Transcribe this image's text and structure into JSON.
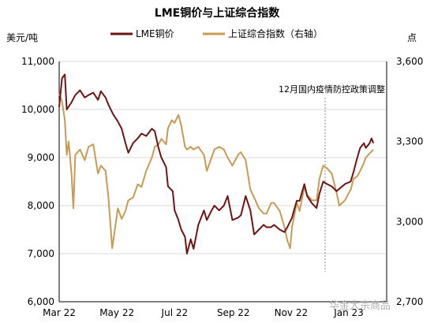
{
  "chart_data": {
    "type": "line",
    "title": "LME铜价与上证综合指数",
    "left_unit": "美元/吨",
    "right_unit": "点",
    "ylim_left": [
      6000,
      11000
    ],
    "ylim_right": [
      2700,
      3600
    ],
    "left_ticks": [
      "6,000",
      "7,000",
      "8,000",
      "9,000",
      "10,000",
      "11,000"
    ],
    "right_ticks": [
      "2,700",
      "3,000",
      "3,300",
      "3,600"
    ],
    "x_ticks": [
      "Mar 22",
      "May 22",
      "Jul 22",
      "Sep 22",
      "Nov 22",
      "Jan 23"
    ],
    "annotation": "12月国内疫情防控政策调整",
    "annotation_x": "2022-12-07",
    "legend_position": "top",
    "colors": {
      "lme": "#6e1414",
      "sse": "#c89a52",
      "grid": "#d9d9d9",
      "annotation_line": "#888888"
    },
    "series": [
      {
        "name": "LME铜价",
        "axis": "left",
        "points": [
          [
            "2022-03-01",
            10050
          ],
          [
            "2022-03-04",
            10650
          ],
          [
            "2022-03-07",
            10730
          ],
          [
            "2022-03-09",
            10000
          ],
          [
            "2022-03-14",
            10150
          ],
          [
            "2022-03-18",
            10300
          ],
          [
            "2022-03-23",
            10400
          ],
          [
            "2022-03-28",
            10250
          ],
          [
            "2022-04-01",
            10300
          ],
          [
            "2022-04-06",
            10350
          ],
          [
            "2022-04-11",
            10200
          ],
          [
            "2022-04-14",
            10380
          ],
          [
            "2022-04-19",
            10250
          ],
          [
            "2022-04-22",
            10100
          ],
          [
            "2022-04-27",
            9900
          ],
          [
            "2022-05-02",
            9750
          ],
          [
            "2022-05-06",
            9600
          ],
          [
            "2022-05-10",
            9300
          ],
          [
            "2022-05-13",
            9100
          ],
          [
            "2022-05-18",
            9300
          ],
          [
            "2022-05-23",
            9400
          ],
          [
            "2022-05-27",
            9500
          ],
          [
            "2022-06-01",
            9450
          ],
          [
            "2022-06-07",
            9600
          ],
          [
            "2022-06-10",
            9550
          ],
          [
            "2022-06-14",
            9200
          ],
          [
            "2022-06-17",
            9000
          ],
          [
            "2022-06-22",
            8800
          ],
          [
            "2022-06-24",
            8400
          ],
          [
            "2022-06-29",
            8300
          ],
          [
            "2022-07-01",
            7900
          ],
          [
            "2022-07-05",
            7700
          ],
          [
            "2022-07-08",
            7500
          ],
          [
            "2022-07-12",
            7350
          ],
          [
            "2022-07-14",
            7000
          ],
          [
            "2022-07-18",
            7300
          ],
          [
            "2022-07-21",
            7100
          ],
          [
            "2022-07-26",
            7600
          ],
          [
            "2022-08-01",
            7900
          ],
          [
            "2022-08-04",
            7700
          ],
          [
            "2022-08-09",
            7900
          ],
          [
            "2022-08-12",
            8000
          ],
          [
            "2022-08-17",
            7900
          ],
          [
            "2022-08-22",
            8000
          ],
          [
            "2022-08-26",
            8200
          ],
          [
            "2022-08-31",
            7700
          ],
          [
            "2022-09-06",
            7750
          ],
          [
            "2022-09-09",
            7800
          ],
          [
            "2022-09-14",
            8200
          ],
          [
            "2022-09-19",
            7900
          ],
          [
            "2022-09-23",
            7400
          ],
          [
            "2022-09-28",
            7500
          ],
          [
            "2022-10-03",
            7600
          ],
          [
            "2022-10-06",
            7550
          ],
          [
            "2022-10-11",
            7550
          ],
          [
            "2022-10-14",
            7600
          ],
          [
            "2022-10-20",
            7500
          ],
          [
            "2022-10-25",
            7450
          ],
          [
            "2022-10-28",
            7550
          ],
          [
            "2022-11-02",
            7750
          ],
          [
            "2022-11-04",
            7900
          ],
          [
            "2022-11-07",
            8100
          ],
          [
            "2022-11-10",
            8100
          ],
          [
            "2022-11-15",
            8450
          ],
          [
            "2022-11-18",
            8200
          ],
          [
            "2022-11-23",
            8050
          ],
          [
            "2022-11-28",
            7950
          ],
          [
            "2022-12-01",
            8250
          ],
          [
            "2022-12-05",
            8500
          ],
          [
            "2022-12-09",
            8450
          ],
          [
            "2022-12-14",
            8400
          ],
          [
            "2022-12-19",
            8300
          ],
          [
            "2022-12-22",
            8350
          ],
          [
            "2022-12-28",
            8450
          ],
          [
            "2023-01-03",
            8500
          ],
          [
            "2023-01-06",
            8700
          ],
          [
            "2023-01-10",
            9000
          ],
          [
            "2023-01-13",
            9200
          ],
          [
            "2023-01-17",
            9300
          ],
          [
            "2023-01-19",
            9200
          ],
          [
            "2023-01-23",
            9300
          ],
          [
            "2023-01-25",
            9400
          ],
          [
            "2023-01-27",
            9300
          ]
        ]
      },
      {
        "name": "上证综合指数（右轴）",
        "axis": "right",
        "points": [
          [
            "2022-03-01",
            3480
          ],
          [
            "2022-03-04",
            3450
          ],
          [
            "2022-03-07",
            3380
          ],
          [
            "2022-03-09",
            3250
          ],
          [
            "2022-03-11",
            3300
          ],
          [
            "2022-03-14",
            3180
          ],
          [
            "2022-03-16",
            3050
          ],
          [
            "2022-03-18",
            3250
          ],
          [
            "2022-03-23",
            3270
          ],
          [
            "2022-03-28",
            3230
          ],
          [
            "2022-04-01",
            3280
          ],
          [
            "2022-04-06",
            3290
          ],
          [
            "2022-04-11",
            3180
          ],
          [
            "2022-04-14",
            3210
          ],
          [
            "2022-04-19",
            3190
          ],
          [
            "2022-04-22",
            3090
          ],
          [
            "2022-04-26",
            2900
          ],
          [
            "2022-04-28",
            2950
          ],
          [
            "2022-05-02",
            3050
          ],
          [
            "2022-05-06",
            3010
          ],
          [
            "2022-05-10",
            3040
          ],
          [
            "2022-05-13",
            3080
          ],
          [
            "2022-05-18",
            3090
          ],
          [
            "2022-05-23",
            3140
          ],
          [
            "2022-05-27",
            3130
          ],
          [
            "2022-06-01",
            3190
          ],
          [
            "2022-06-07",
            3240
          ],
          [
            "2022-06-10",
            3280
          ],
          [
            "2022-06-14",
            3290
          ],
          [
            "2022-06-17",
            3310
          ],
          [
            "2022-06-22",
            3290
          ],
          [
            "2022-06-24",
            3350
          ],
          [
            "2022-06-28",
            3380
          ],
          [
            "2022-07-01",
            3370
          ],
          [
            "2022-07-05",
            3400
          ],
          [
            "2022-07-08",
            3360
          ],
          [
            "2022-07-12",
            3280
          ],
          [
            "2022-07-14",
            3270
          ],
          [
            "2022-07-18",
            3280
          ],
          [
            "2022-07-21",
            3270
          ],
          [
            "2022-07-26",
            3280
          ],
          [
            "2022-08-01",
            3250
          ],
          [
            "2022-08-04",
            3190
          ],
          [
            "2022-08-09",
            3240
          ],
          [
            "2022-08-12",
            3270
          ],
          [
            "2022-08-17",
            3280
          ],
          [
            "2022-08-22",
            3270
          ],
          [
            "2022-08-26",
            3240
          ],
          [
            "2022-08-31",
            3210
          ],
          [
            "2022-09-06",
            3250
          ],
          [
            "2022-09-09",
            3260
          ],
          [
            "2022-09-14",
            3230
          ],
          [
            "2022-09-19",
            3120
          ],
          [
            "2022-09-23",
            3090
          ],
          [
            "2022-09-28",
            3050
          ],
          [
            "2022-10-03",
            3030
          ],
          [
            "2022-10-06",
            3030
          ],
          [
            "2022-10-11",
            3070
          ],
          [
            "2022-10-14",
            3070
          ],
          [
            "2022-10-20",
            3040
          ],
          [
            "2022-10-25",
            2980
          ],
          [
            "2022-10-28",
            2930
          ],
          [
            "2022-10-31",
            2900
          ],
          [
            "2022-11-02",
            2980
          ],
          [
            "2022-11-07",
            3070
          ],
          [
            "2022-11-10",
            3040
          ],
          [
            "2022-11-15",
            3130
          ],
          [
            "2022-11-18",
            3100
          ],
          [
            "2022-11-23",
            3080
          ],
          [
            "2022-11-28",
            3080
          ],
          [
            "2022-12-01",
            3160
          ],
          [
            "2022-12-05",
            3210
          ],
          [
            "2022-12-09",
            3200
          ],
          [
            "2022-12-14",
            3180
          ],
          [
            "2022-12-19",
            3110
          ],
          [
            "2022-12-22",
            3060
          ],
          [
            "2022-12-28",
            3080
          ],
          [
            "2023-01-03",
            3120
          ],
          [
            "2023-01-06",
            3160
          ],
          [
            "2023-01-10",
            3170
          ],
          [
            "2023-01-13",
            3190
          ],
          [
            "2023-01-17",
            3220
          ],
          [
            "2023-01-19",
            3240
          ],
          [
            "2023-01-27",
            3270
          ]
        ]
      }
    ]
  },
  "watermark": "华金大宗商品"
}
